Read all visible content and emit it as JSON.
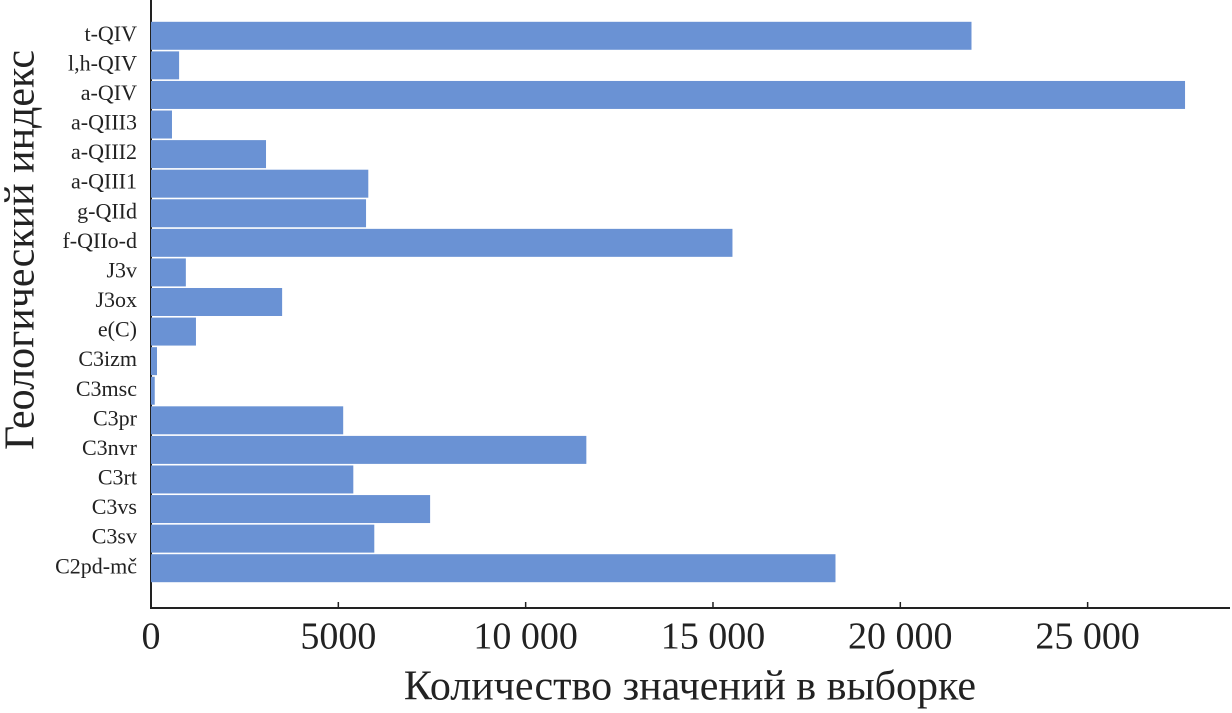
{
  "chart_data": {
    "type": "hbar",
    "x_label": "Количество значений в выборке",
    "y_label": "Геологический индекс",
    "categories": [
      "t-QIV",
      "l,h-QIV",
      "a-QIV",
      "a-QIII3",
      "a-QIII2",
      "a-QIII1",
      "g-QIId",
      "f-QIIo-d",
      "J3v",
      "J3ox",
      "e(C)",
      "C3izm",
      "C3msc",
      "C3pr",
      "C3nvr",
      "C3rt",
      "C3vs",
      "C3sv",
      "C2pd-mč"
    ],
    "values": [
      21900,
      750,
      27600,
      560,
      3070,
      5800,
      5740,
      15520,
      930,
      3500,
      1200,
      160,
      100,
      5130,
      11620,
      5400,
      7450,
      5960,
      18270
    ],
    "color": "#6a92d4",
    "xlim": [
      0,
      28800
    ],
    "xticks": [
      0,
      5000,
      {
        "value": 10000,
        "label": "10 000"
      },
      {
        "value": 15000,
        "label": "15 000"
      },
      {
        "value": 20000,
        "label": "20 000"
      },
      {
        "value": 25000,
        "label": "25 000"
      }
    ]
  }
}
